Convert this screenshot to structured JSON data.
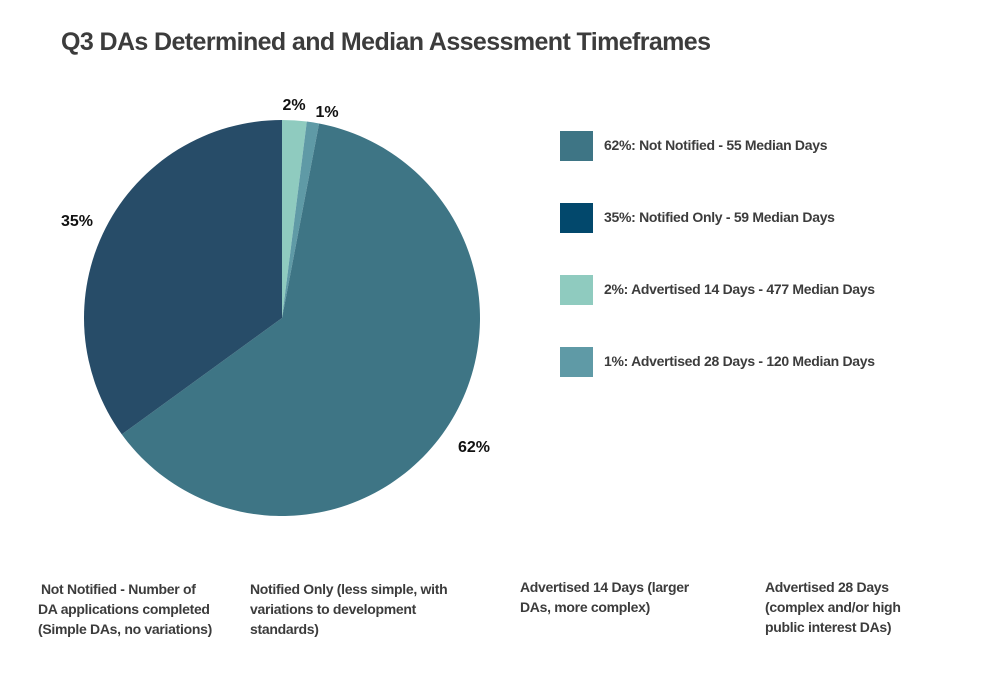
{
  "title": "Q3 DAs Determined and Median Assessment Timeframes",
  "chart_data": {
    "type": "pie",
    "title": "Q3 DAs Determined and Median Assessment Timeframes",
    "slices": [
      {
        "label": "2%",
        "value": 2,
        "color": "#8fcbbf"
      },
      {
        "label": "1%",
        "value": 1,
        "color": "#5f9aa6"
      },
      {
        "label": "62%",
        "value": 62,
        "color": "#3e7585"
      },
      {
        "label": "35%",
        "value": 35,
        "color": "#274c68"
      }
    ],
    "legend": [
      {
        "label": "62%: Not Notified - 55 Median Days",
        "color": "#3e7585"
      },
      {
        "label": "35%: Notified Only - 59 Median Days",
        "color": "#02486c"
      },
      {
        "label": "2%: Advertised 14 Days - 477 Median Days",
        "color": "#8fcbbf"
      },
      {
        "label": "1%: Advertised 28 Days - 120 Median Days",
        "color": "#5f9aa6"
      }
    ],
    "legend_position": "right"
  },
  "notes": [
    {
      "lines": [
        "Not Notified - Number of",
        "DA applications completed",
        "(Simple DAs, no variations)"
      ]
    },
    {
      "lines": [
        "Notified Only (less simple, with",
        "variations to development",
        "standards)"
      ]
    },
    {
      "lines": [
        "Advertised 14 Days (larger",
        "DAs, more complex)"
      ]
    },
    {
      "lines": [
        "Advertised 28 Days",
        "(complex and/or high",
        "public interest DAs)"
      ]
    }
  ]
}
